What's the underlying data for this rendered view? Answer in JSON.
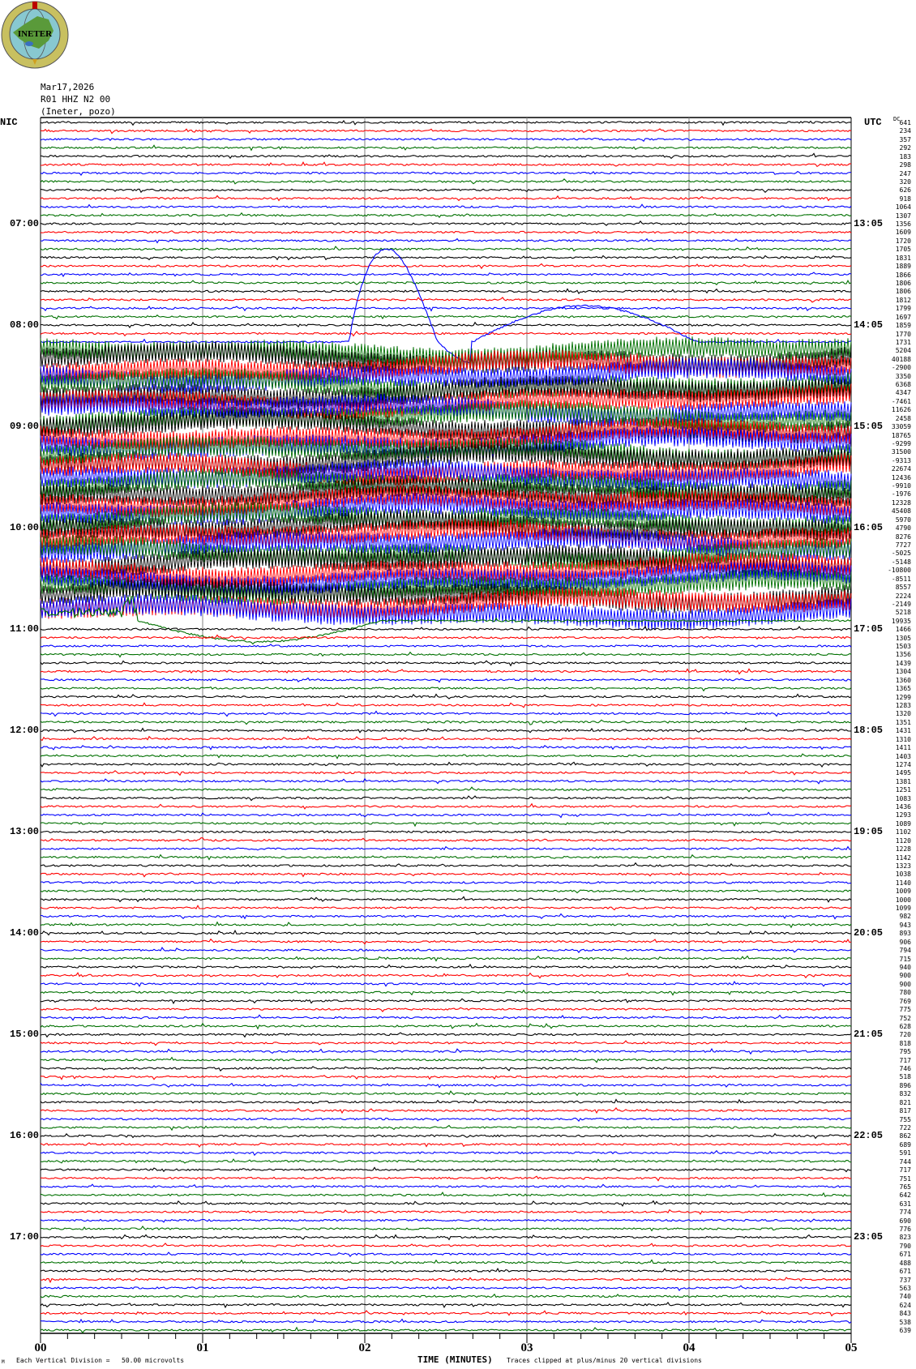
{
  "logo": {
    "text": "INETER"
  },
  "header": {
    "date": "Mar17,2026",
    "channel": "R01 HHZ N2 00",
    "network": "(Ineter, pozo)"
  },
  "left_zone_label": "NIC",
  "right_zone_label": "UTC",
  "dc_label": "DC",
  "footer": {
    "scale_text": "Each Vertical Division =   50.00 microvolts",
    "xlabel": "TIME (MINUTES)",
    "clip_text": "Traces clipped at plus/minus 20 vertical divisions",
    "corner_mark": "M"
  },
  "colors": {
    "cycle": [
      "#000000",
      "#ff0000",
      "#0000ff",
      "#007000"
    ],
    "grid": "#808080"
  },
  "chart_data": {
    "type": "line",
    "subtype": "helicorder",
    "xlabel": "TIME (MINUTES)",
    "xlim": [
      0,
      5
    ],
    "x_tick_labels": [
      "00",
      "01",
      "02",
      "03",
      "04",
      "05"
    ],
    "trace_minutes": 5,
    "left_hour_labels": [
      "07:00",
      "08:00",
      "09:00",
      "10:00",
      "11:00",
      "12:00",
      "13:00",
      "14:00",
      "15:00",
      "16:00",
      "17:00"
    ],
    "right_hour_labels": [
      "13:05",
      "14:05",
      "15:05",
      "16:05",
      "17:05",
      "18:05",
      "19:05",
      "20:05",
      "21:05",
      "22:05",
      "23:05"
    ],
    "trace_values": [
      "641",
      "234",
      "357",
      "292",
      "183",
      "298",
      "247",
      "320",
      "626",
      "918",
      "1064",
      "1307",
      "1356",
      "1609",
      "1720",
      "1705",
      "1831",
      "1889",
      "1866",
      "1806",
      "1806",
      "1812",
      "1799",
      "1697",
      "1859",
      "1770",
      "1731",
      "5204",
      "40188",
      "-2900",
      "3350",
      "6368",
      "4347",
      "-7461",
      "11626",
      "2458",
      "33059",
      "18765",
      "-9299",
      "31500",
      "-9313",
      "22674",
      "12436",
      "-9910",
      "-1976",
      "12328",
      "45408",
      "5970",
      "4790",
      "8276",
      "7727",
      "-5025",
      "-5148",
      "-10800",
      "-8511",
      "8557",
      "2224",
      "-2149",
      "5218",
      "19935",
      "1466",
      "1305",
      "1503",
      "1356",
      "1439",
      "1304",
      "1360",
      "1365",
      "1299",
      "1283",
      "1320",
      "1351",
      "1431",
      "1310",
      "1411",
      "1403",
      "1274",
      "1495",
      "1381",
      "1251",
      "1083",
      "1436",
      "1293",
      "1089",
      "1102",
      "1120",
      "1228",
      "1142",
      "1323",
      "1038",
      "1140",
      "1009",
      "1000",
      "1099",
      "982",
      "943",
      "893",
      "906",
      "794",
      "715",
      "940",
      "900",
      "900",
      "780",
      "769",
      "775",
      "752",
      "628",
      "720",
      "818",
      "795",
      "717",
      "746",
      "518",
      "896",
      "832",
      "821",
      "817",
      "755",
      "722",
      "862",
      "689",
      "591",
      "744",
      "717",
      "751",
      "765",
      "642",
      "631",
      "774",
      "690",
      "776",
      "823",
      "790",
      "671",
      "488",
      "671",
      "737",
      "563",
      "740",
      "624",
      "843",
      "538",
      "639"
    ]
  }
}
